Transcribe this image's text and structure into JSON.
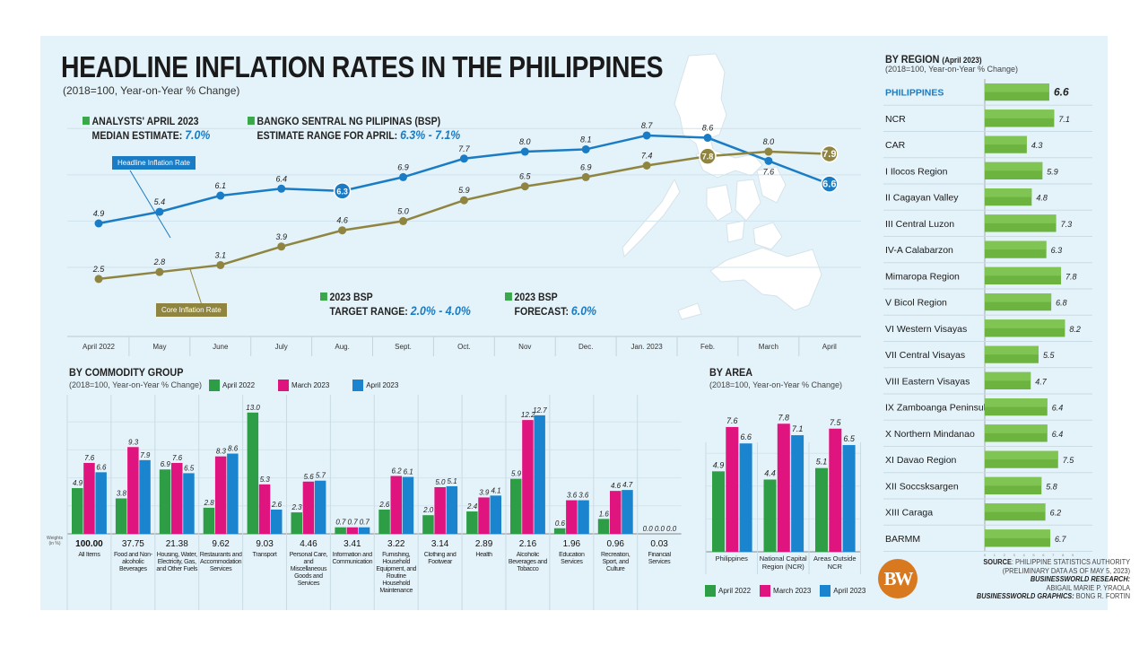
{
  "title": "HEADLINE INFLATION RATES IN THE PHILIPPINES",
  "subtitle": "(2018=100, Year-on-Year % Change)",
  "notes": {
    "analysts_line1": "ANALYSTS' APRIL 2023",
    "analysts_line2": "MEDIAN ESTIMATE: ",
    "analysts_value": "7.0%",
    "bsp_line1": "BANGKO SENTRAL NG PILIPINAS (BSP)",
    "bsp_line2": "ESTIMATE RANGE FOR APRIL: ",
    "bsp_value": "6.3% - 7.1%",
    "target_line1": "2023 BSP",
    "target_line2": "TARGET RANGE: ",
    "target_value": "2.0% - 4.0%",
    "forecast_line1": "2023 BSP",
    "forecast_line2": "FORECAST: ",
    "forecast_value": "6.0%"
  },
  "colors": {
    "headline": "#1a7cc4",
    "core": "#8f8540",
    "april2022": "#2e9e46",
    "march2023": "#e0147e",
    "april2023": "#1a84cf",
    "region_bar": "#6db33f",
    "background": "#e4f2f9"
  },
  "map_icon": "philippines-map",
  "chart_data": [
    {
      "type": "line",
      "categories": [
        "April 2022",
        "May",
        "June",
        "July",
        "Aug.",
        "Sept.",
        "Oct.",
        "Nov",
        "Dec.",
        "Jan. 2023",
        "Feb.",
        "March",
        "April"
      ],
      "series": [
        {
          "name": "Headline Inflation Rate",
          "values": [
            4.9,
            5.4,
            6.1,
            6.4,
            6.3,
            6.9,
            7.7,
            8.0,
            8.1,
            8.7,
            8.6,
            7.6,
            6.6
          ]
        },
        {
          "name": "Core Inflation Rate",
          "values": [
            2.5,
            2.8,
            3.1,
            3.9,
            4.6,
            5.0,
            5.9,
            6.5,
            6.9,
            7.4,
            7.8,
            8.0,
            7.9
          ]
        }
      ],
      "grid": true
    },
    {
      "type": "bar",
      "title": "BY COMMODITY GROUP",
      "subtitle": "(2018=100, Year-on-Year % Change)",
      "weights_label": "Weights (in %)",
      "categories": [
        "All Items",
        "Food and Non-alcoholic Beverages",
        "Housing, Water, Electricity, Gas, and Other Fuels",
        "Restaurants and Accommodation Services",
        "Transport",
        "Personal Care, and Miscellaneous Goods and Services",
        "Information and Communication",
        "Furnishing, Household Equipment, and Routine Household Maintenance",
        "Clothing and Footwear",
        "Health",
        "Alcoholic Beverages and Tobacco",
        "Education Services",
        "Recreation, Sport, and Culture",
        "Financial Services"
      ],
      "weights": [
        "100.00",
        "37.75",
        "21.38",
        "9.62",
        "9.03",
        "4.46",
        "3.41",
        "3.22",
        "3.14",
        "2.89",
        "2.16",
        "1.96",
        "0.96",
        "0.03"
      ],
      "series": [
        {
          "name": "April 2022",
          "values": [
            4.9,
            3.8,
            6.9,
            2.8,
            13.0,
            2.3,
            0.7,
            2.6,
            2.0,
            2.4,
            5.9,
            0.6,
            1.6,
            0.0
          ]
        },
        {
          "name": "March 2023",
          "values": [
            7.6,
            9.3,
            7.6,
            8.3,
            5.3,
            5.6,
            0.7,
            6.2,
            5.0,
            3.9,
            12.2,
            3.6,
            4.6,
            0.0
          ]
        },
        {
          "name": "April 2023",
          "values": [
            6.6,
            7.9,
            6.5,
            8.6,
            2.6,
            5.7,
            0.7,
            6.1,
            5.1,
            4.1,
            12.7,
            3.6,
            4.7,
            0.0
          ]
        }
      ],
      "legend": "top"
    },
    {
      "type": "bar",
      "title": "BY AREA",
      "subtitle": "(2018=100, Year-on-Year % Change)",
      "categories": [
        "Philippines",
        "National Capital Region (NCR)",
        "Areas Outside NCR"
      ],
      "series": [
        {
          "name": "April 2022",
          "values": [
            4.9,
            4.4,
            5.1
          ]
        },
        {
          "name": "March 2023",
          "values": [
            7.6,
            7.8,
            7.5
          ]
        },
        {
          "name": "April 2023",
          "values": [
            6.6,
            7.1,
            6.5
          ]
        }
      ],
      "legend": "bottom"
    },
    {
      "type": "bar",
      "orientation": "horizontal",
      "title": "BY REGION",
      "title_suffix": "(April 2023)",
      "subtitle": "(2018=100, Year-on-Year % Change)",
      "categories": [
        "PHILIPPINES",
        "NCR",
        "CAR",
        "I Ilocos Region",
        "II Cagayan Valley",
        "III Central Luzon",
        "IV-A Calabarzon",
        "Mimaropa Region",
        "V Bicol Region",
        "VI Western Visayas",
        "VII Central Visayas",
        "VIII Eastern Visayas",
        "IX Zamboanga Peninsula",
        "X Northern Mindanao",
        "XI Davao Region",
        "XII Soccsksargen",
        "XIII Caraga",
        "BARMM"
      ],
      "values": [
        6.6,
        7.1,
        4.3,
        5.9,
        4.8,
        7.3,
        6.3,
        7.8,
        6.8,
        8.2,
        5.5,
        4.7,
        6.4,
        6.4,
        7.5,
        5.8,
        6.2,
        6.7
      ],
      "xlim": [
        0,
        9
      ],
      "xticks": [
        "0",
        "1",
        "2",
        "3",
        "4",
        "5",
        "6",
        "7",
        "8",
        "9"
      ]
    }
  ],
  "source": {
    "label": "SOURCE",
    "text": ": PHILIPPINE STATISTICS AUTHORITY",
    "text2": "(PRELIMINARY DATA AS OF MAY 5, 2023)",
    "research_label": "BUSINESSWORLD RESEARCH:",
    "research_name": "ABIGAIL MARIE P. YRAOLA",
    "graphics_label": "BUSINESSWORLD GRAPHICS:",
    "graphics_name": " BONG R. FORTIN"
  },
  "logo": "BW"
}
